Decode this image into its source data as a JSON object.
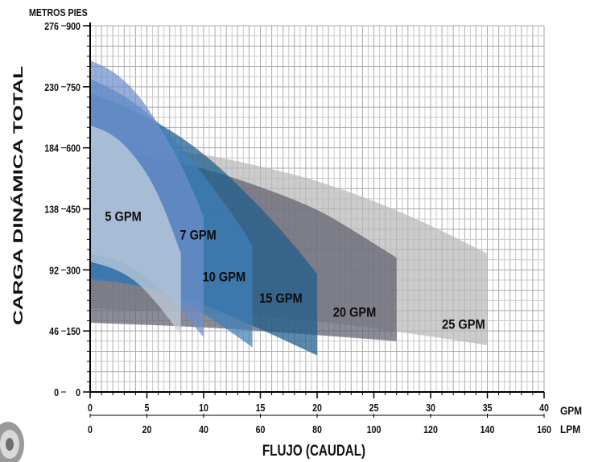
{
  "chart_data": {
    "type": "area",
    "title": "",
    "xlabel": "FLUJO (CAUDAL)",
    "ylabel": "CARGA DINÁMICA TOTAL",
    "x_axis": {
      "unit": "GPM",
      "ticks": [
        0,
        5,
        10,
        15,
        20,
        25,
        30,
        35,
        40
      ],
      "range": [
        0,
        40
      ]
    },
    "x_axis_secondary": {
      "unit": "LPM",
      "ticks": [
        0,
        20,
        40,
        60,
        80,
        100,
        120,
        140,
        160
      ]
    },
    "y_axis": {
      "unit": "PIES",
      "ticks": [
        0,
        150,
        300,
        450,
        600,
        750,
        900
      ],
      "range": [
        0,
        900
      ]
    },
    "y_axis_secondary": {
      "unit": "METROS",
      "ticks": [
        0,
        46,
        92,
        138,
        184,
        230,
        276
      ]
    },
    "grid": true,
    "series": [
      {
        "name": "25 GPM",
        "color": "#b9b9b9",
        "upper": [
          [
            0,
            605
          ],
          [
            5,
            600
          ],
          [
            10,
            585
          ],
          [
            15,
            555
          ],
          [
            20,
            520
          ],
          [
            25,
            470
          ],
          [
            30,
            410
          ],
          [
            35,
            340
          ]
        ],
        "lower": [
          [
            0,
            205
          ],
          [
            10,
            195
          ],
          [
            20,
            175
          ],
          [
            28,
            145
          ],
          [
            35,
            115
          ]
        ]
      },
      {
        "name": "20 GPM",
        "color": "#5f5f6e",
        "upper": [
          [
            0,
            600
          ],
          [
            5,
            580
          ],
          [
            10,
            550
          ],
          [
            15,
            505
          ],
          [
            20,
            450
          ],
          [
            23,
            400
          ],
          [
            27,
            330
          ]
        ],
        "lower": [
          [
            0,
            170
          ],
          [
            10,
            160
          ],
          [
            20,
            140
          ],
          [
            27,
            125
          ]
        ]
      },
      {
        "name": "15 GPM",
        "color": "#1c5b8c",
        "upper": [
          [
            0,
            735
          ],
          [
            5,
            680
          ],
          [
            10,
            590
          ],
          [
            15,
            455
          ],
          [
            18,
            360
          ],
          [
            20,
            290
          ]
        ],
        "lower": [
          [
            0,
            280
          ],
          [
            5,
            260
          ],
          [
            10,
            215
          ],
          [
            15,
            155
          ],
          [
            20,
            90
          ]
        ]
      },
      {
        "name": "10 GPM",
        "color": "#3f7fb8",
        "upper": [
          [
            0,
            770
          ],
          [
            3,
            730
          ],
          [
            6,
            665
          ],
          [
            9,
            570
          ],
          [
            11,
            495
          ],
          [
            13,
            420
          ],
          [
            14.3,
            360
          ]
        ],
        "lower": [
          [
            0,
            275
          ],
          [
            4,
            265
          ],
          [
            8,
            225
          ],
          [
            11,
            175
          ],
          [
            14.3,
            110
          ]
        ]
      },
      {
        "name": "7 GPM",
        "color": "#6d8fcb",
        "upper": [
          [
            0,
            815
          ],
          [
            2,
            790
          ],
          [
            4,
            740
          ],
          [
            6,
            660
          ],
          [
            8,
            560
          ],
          [
            9.3,
            480
          ],
          [
            10,
            430
          ]
        ],
        "lower": [
          [
            0,
            340
          ],
          [
            3,
            320
          ],
          [
            6,
            260
          ],
          [
            8,
            200
          ],
          [
            10,
            135
          ]
        ]
      },
      {
        "name": "5 GPM",
        "color": "#c4d0dd",
        "upper": [
          [
            0,
            655
          ],
          [
            1.5,
            640
          ],
          [
            3,
            610
          ],
          [
            5,
            540
          ],
          [
            6.5,
            455
          ],
          [
            8,
            340
          ]
        ],
        "lower": [
          [
            0,
            320
          ],
          [
            2,
            305
          ],
          [
            4,
            275
          ],
          [
            6,
            215
          ],
          [
            8,
            140
          ]
        ]
      }
    ]
  }
}
